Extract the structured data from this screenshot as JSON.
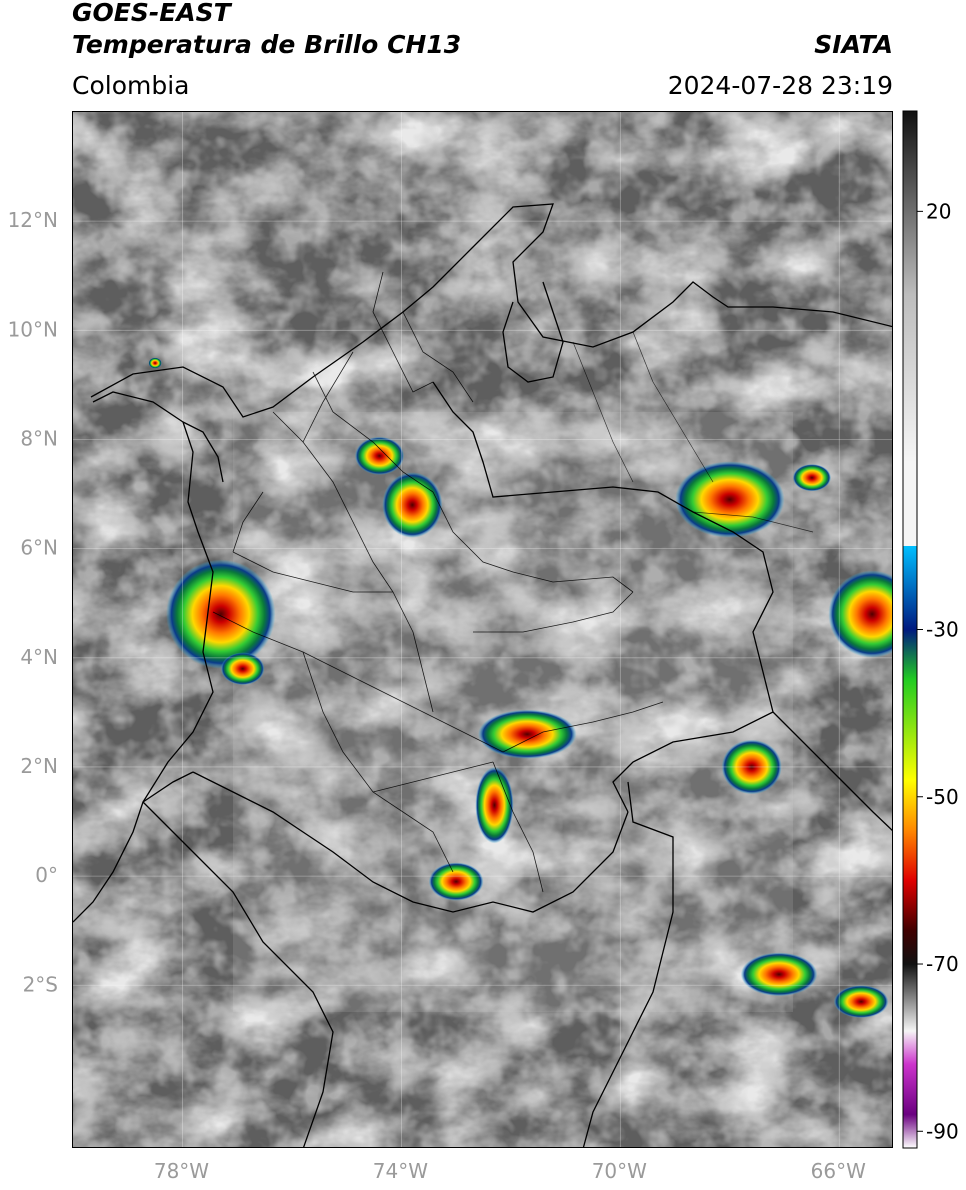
{
  "header": {
    "satellite": "GOES-EAST",
    "product": "Temperatura de Brillo CH13",
    "region": "Colombia",
    "organization": "SIATA",
    "timestamp": "2024-07-28 23:19"
  },
  "map": {
    "lon_range": [
      -80,
      -65
    ],
    "lat_range": [
      -5,
      14
    ],
    "lat_ticks": [
      {
        "value": 12,
        "label": "12°N"
      },
      {
        "value": 10,
        "label": "10°N"
      },
      {
        "value": 8,
        "label": "8°N"
      },
      {
        "value": 6,
        "label": "6°N"
      },
      {
        "value": 4,
        "label": "4°N"
      },
      {
        "value": 2,
        "label": "2°N"
      },
      {
        "value": 0,
        "label": "0°"
      },
      {
        "value": -2,
        "label": "2°S"
      }
    ],
    "lon_ticks": [
      {
        "value": -78,
        "label": "78°W"
      },
      {
        "value": -74,
        "label": "74°W"
      },
      {
        "value": -70,
        "label": "70°W"
      },
      {
        "value": -66,
        "label": "66°W"
      }
    ],
    "grid": true
  },
  "colorbar": {
    "range": [
      -92,
      32
    ],
    "ticks": [
      {
        "value": 20,
        "label": "20"
      },
      {
        "value": -30,
        "label": "-30"
      },
      {
        "value": -50,
        "label": "-50"
      },
      {
        "value": -70,
        "label": "-70"
      },
      {
        "value": -90,
        "label": "-90"
      }
    ],
    "colors": {
      "warm_top": "#111111",
      "warm_mid": "#bdbdbd",
      "neutral": "#f5f5f5",
      "cyan": "#00bfff",
      "navy": "#001a80",
      "green": "#22cc22",
      "yellow": "#ffff00",
      "orange": "#ff8800",
      "red": "#e00000",
      "dark_red": "#400000",
      "magenta": "#cc33cc",
      "purple": "#6a0080"
    }
  },
  "storms": [
    {
      "lon": -73.8,
      "lat": 6.8,
      "rx": 0.55,
      "ry": 0.6
    },
    {
      "lon": -77.3,
      "lat": 4.8,
      "rx": 1.0,
      "ry": 1.0
    },
    {
      "lon": -68.0,
      "lat": 6.9,
      "rx": 1.0,
      "ry": 0.7
    },
    {
      "lon": -66.5,
      "lat": 7.3,
      "rx": 0.35,
      "ry": 0.25
    },
    {
      "lon": -67.6,
      "lat": 2.0,
      "rx": 0.55,
      "ry": 0.5
    },
    {
      "lon": -65.4,
      "lat": 4.8,
      "rx": 0.8,
      "ry": 0.8
    },
    {
      "lon": -71.7,
      "lat": 2.6,
      "rx": 0.9,
      "ry": 0.45
    },
    {
      "lon": -72.3,
      "lat": 1.3,
      "rx": 0.35,
      "ry": 0.7
    },
    {
      "lon": -73.0,
      "lat": -0.1,
      "rx": 0.5,
      "ry": 0.35
    },
    {
      "lon": -67.1,
      "lat": -1.8,
      "rx": 0.7,
      "ry": 0.4
    },
    {
      "lon": -65.6,
      "lat": -2.3,
      "rx": 0.5,
      "ry": 0.3
    },
    {
      "lon": -76.9,
      "lat": 3.8,
      "rx": 0.4,
      "ry": 0.3
    },
    {
      "lon": -78.5,
      "lat": 9.4,
      "rx": 0.12,
      "ry": 0.1
    },
    {
      "lon": -74.4,
      "lat": 7.7,
      "rx": 0.45,
      "ry": 0.35
    }
  ]
}
